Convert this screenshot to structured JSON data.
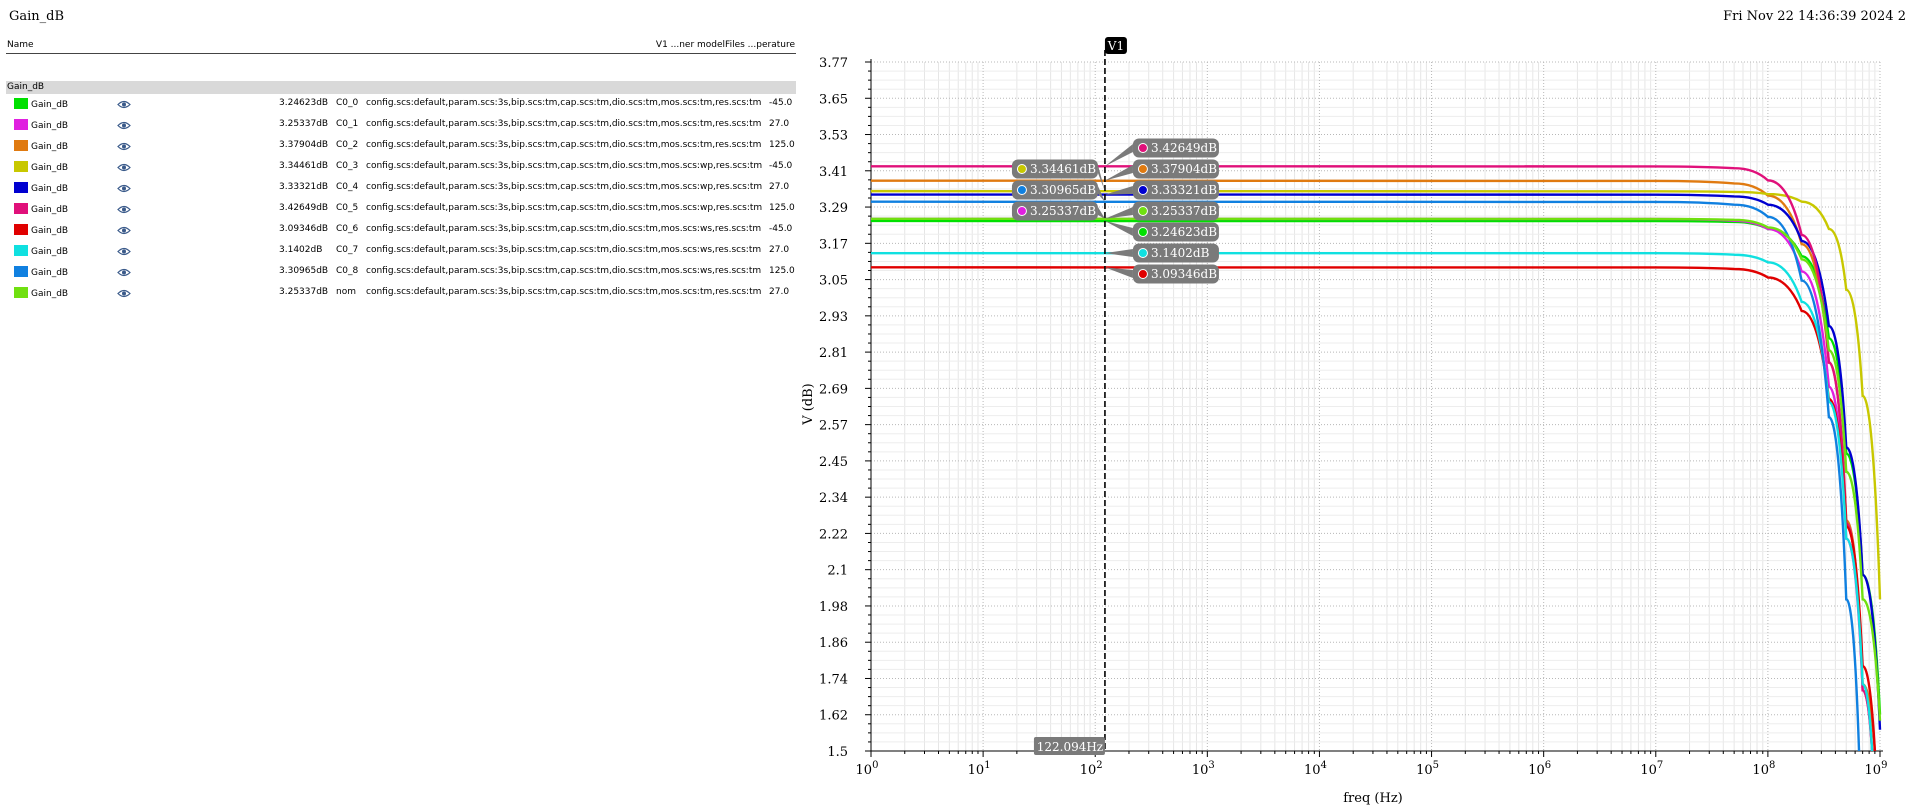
{
  "header": {
    "title": "Gain_dB",
    "timestamp": "Fri Nov 22 14:36:39 2024   2"
  },
  "legend": {
    "col_name": "Name",
    "col_right": "V1 ...ner modelFiles ...perature",
    "group_label": "Gain_dB",
    "rows": [
      {
        "name": "Gain_dB",
        "value": "3.24623dB",
        "corner": "C0_0",
        "config": "config.scs:default,param.scs:3s,bip.scs:tm,cap.scs:tm,dio.scs:tm,mos.scs:tm,res.scs:tm",
        "temp": "-45.0",
        "color": "#00e000"
      },
      {
        "name": "Gain_dB",
        "value": "3.25337dB",
        "corner": "C0_1",
        "config": "config.scs:default,param.scs:3s,bip.scs:tm,cap.scs:tm,dio.scs:tm,mos.scs:tm,res.scs:tm",
        "temp": "27.0",
        "color": "#e020e0"
      },
      {
        "name": "Gain_dB",
        "value": "3.37904dB",
        "corner": "C0_2",
        "config": "config.scs:default,param.scs:3s,bip.scs:tm,cap.scs:tm,dio.scs:tm,mos.scs:tm,res.scs:tm",
        "temp": "125.0",
        "color": "#e07a10"
      },
      {
        "name": "Gain_dB",
        "value": "3.34461dB",
        "corner": "C0_3",
        "config": "config.scs:default,param.scs:3s,bip.scs:tm,cap.scs:tm,dio.scs:tm,mos.scs:wp,res.scs:tm",
        "temp": "-45.0",
        "color": "#c8c800"
      },
      {
        "name": "Gain_dB",
        "value": "3.33321dB",
        "corner": "C0_4",
        "config": "config.scs:default,param.scs:3s,bip.scs:tm,cap.scs:tm,dio.scs:tm,mos.scs:wp,res.scs:tm",
        "temp": "27.0",
        "color": "#0000d0"
      },
      {
        "name": "Gain_dB",
        "value": "3.42649dB",
        "corner": "C0_5",
        "config": "config.scs:default,param.scs:3s,bip.scs:tm,cap.scs:tm,dio.scs:tm,mos.scs:wp,res.scs:tm",
        "temp": "125.0",
        "color": "#e0107a"
      },
      {
        "name": "Gain_dB",
        "value": "3.09346dB",
        "corner": "C0_6",
        "config": "config.scs:default,param.scs:3s,bip.scs:tm,cap.scs:tm,dio.scs:tm,mos.scs:ws,res.scs:tm",
        "temp": "-45.0",
        "color": "#e00000"
      },
      {
        "name": "Gain_dB",
        "value": "3.1402dB",
        "corner": "C0_7",
        "config": "config.scs:default,param.scs:3s,bip.scs:tm,cap.scs:tm,dio.scs:tm,mos.scs:ws,res.scs:tm",
        "temp": "27.0",
        "color": "#10e0e0"
      },
      {
        "name": "Gain_dB",
        "value": "3.30965dB",
        "corner": "C0_8",
        "config": "config.scs:default,param.scs:3s,bip.scs:tm,cap.scs:tm,dio.scs:tm,mos.scs:ws,res.scs:tm",
        "temp": "125.0",
        "color": "#1080e0"
      },
      {
        "name": "Gain_dB",
        "value": "3.25337dB",
        "corner": "nom",
        "config": "config.scs:default,param.scs:3s,bip.scs:tm,cap.scs:tm,dio.scs:tm,mos.scs:tm,res.scs:tm",
        "temp": "27.0",
        "color": "#70e010"
      }
    ]
  },
  "chart_data": {
    "type": "line",
    "xscale": "log",
    "xlabel": "freq (Hz)",
    "ylabel": "V (dB)",
    "xlim": [
      1,
      1000000000
    ],
    "ylim": [
      1.5,
      3.77
    ],
    "grid": true,
    "x_tick_labels": [
      "10^0",
      "10^1",
      "10^2",
      "10^3",
      "10^4",
      "10^5",
      "10^6",
      "10^7",
      "10^8",
      "10^9"
    ],
    "y_ticks": [
      "1.5",
      "1.62",
      "1.74",
      "1.86",
      "1.98",
      "2.1",
      "2.22",
      "2.34",
      "2.45",
      "2.57",
      "2.69",
      "2.81",
      "2.93",
      "3.05",
      "3.17",
      "3.29",
      "3.41",
      "3.53",
      "3.65",
      "3.77"
    ],
    "marker": {
      "label": "V1",
      "x": 122.094,
      "x_label": "122.094Hz"
    },
    "series": [
      {
        "corner": "C0_0",
        "color": "#00e000",
        "dc": 3.24623,
        "flag": "3.24623dB",
        "side": "right",
        "x": [
          1,
          10000000,
          50000000,
          100000000,
          200000000,
          350000000,
          500000000,
          700000000,
          1000000000
        ],
        "y": [
          3.24623,
          3.246,
          3.243,
          3.22,
          3.13,
          2.86,
          2.48,
          2.08,
          1.62
        ]
      },
      {
        "corner": "C0_1",
        "color": "#e020e0",
        "dc": 3.25337,
        "flag": "3.25337dB",
        "side": "left",
        "x": [
          1,
          10000000,
          50000000,
          100000000,
          200000000,
          350000000,
          500000000,
          700000000,
          850000000
        ],
        "y": [
          3.25337,
          3.253,
          3.247,
          3.22,
          3.08,
          2.7,
          2.2,
          1.7,
          1.5
        ]
      },
      {
        "corner": "C0_2",
        "color": "#e07a10",
        "dc": 3.37904,
        "flag": "3.37904dB",
        "side": "right",
        "x": [
          1,
          10000000,
          50000000,
          100000000,
          200000000,
          350000000,
          500000000,
          700000000,
          900000000
        ],
        "y": [
          3.37904,
          3.378,
          3.37,
          3.33,
          3.17,
          2.78,
          2.26,
          1.72,
          1.5
        ]
      },
      {
        "corner": "C0_3",
        "color": "#c8c800",
        "dc": 3.34461,
        "flag": "3.34461dB",
        "side": "left",
        "x": [
          1,
          10000000,
          50000000,
          100000000,
          200000000,
          350000000,
          500000000,
          700000000,
          1000000000
        ],
        "y": [
          3.34461,
          3.344,
          3.342,
          3.335,
          3.31,
          3.22,
          3.02,
          2.67,
          2.0
        ]
      },
      {
        "corner": "C0_4",
        "color": "#0000d0",
        "dc": 3.33321,
        "flag": "3.33321dB",
        "side": "right",
        "x": [
          1,
          10000000,
          50000000,
          100000000,
          200000000,
          350000000,
          500000000,
          700000000,
          1000000000
        ],
        "y": [
          3.33321,
          3.333,
          3.327,
          3.3,
          3.18,
          2.9,
          2.5,
          2.08,
          1.57
        ]
      },
      {
        "corner": "C0_5",
        "color": "#e0107a",
        "dc": 3.42649,
        "flag": "3.42649dB",
        "side": "right",
        "x": [
          1,
          10000000,
          50000000,
          100000000,
          200000000,
          350000000,
          500000000,
          700000000,
          850000000
        ],
        "y": [
          3.42649,
          3.426,
          3.42,
          3.38,
          3.2,
          2.78,
          2.25,
          1.7,
          1.5
        ]
      },
      {
        "corner": "C0_6",
        "color": "#e00000",
        "dc": 3.09346,
        "flag": "3.09346dB",
        "side": "right",
        "x": [
          1,
          10000000,
          50000000,
          100000000,
          200000000,
          350000000,
          500000000,
          700000000,
          900000000
        ],
        "y": [
          3.09346,
          3.093,
          3.088,
          3.06,
          2.95,
          2.66,
          2.24,
          1.78,
          1.5
        ]
      },
      {
        "corner": "C0_7",
        "color": "#10e0e0",
        "dc": 3.1402,
        "flag": "3.1402dB",
        "side": "right",
        "x": [
          1,
          10000000,
          50000000,
          100000000,
          200000000,
          350000000,
          500000000,
          700000000,
          850000000
        ],
        "y": [
          3.1402,
          3.14,
          3.135,
          3.11,
          2.98,
          2.65,
          2.2,
          1.72,
          1.5
        ]
      },
      {
        "corner": "C0_8",
        "color": "#1080e0",
        "dc": 3.30965,
        "flag": "3.30965dB",
        "side": "left",
        "x": [
          1,
          10000000,
          50000000,
          100000000,
          200000000,
          350000000,
          500000000,
          650000000
        ],
        "y": [
          3.30965,
          3.309,
          3.3,
          3.26,
          3.05,
          2.6,
          2.0,
          1.5
        ]
      },
      {
        "corner": "nom",
        "color": "#70e010",
        "dc": 3.25337,
        "flag": "3.25337dB",
        "side": "right",
        "x": [
          1,
          10000000,
          50000000,
          100000000,
          200000000,
          350000000,
          500000000,
          700000000,
          1000000000
        ],
        "y": [
          3.25337,
          3.253,
          3.25,
          3.225,
          3.12,
          2.82,
          2.42,
          2.0,
          1.6
        ]
      }
    ]
  }
}
